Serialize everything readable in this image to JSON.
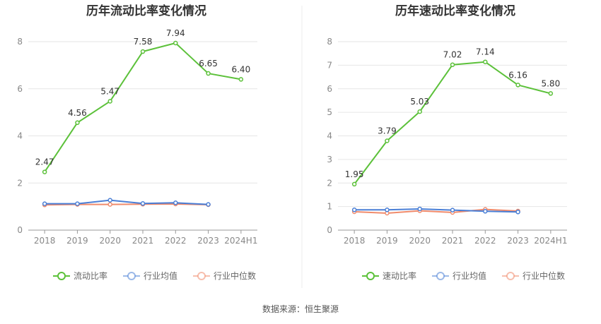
{
  "source": "数据来源：恒生聚源",
  "colors": {
    "primary": "#5cc13a",
    "avg": "#4a7fd6",
    "median": "#f08b6c",
    "grid": "#e6e6e6",
    "axis": "#999999"
  },
  "chart_data": [
    {
      "type": "line",
      "title": "历年流动比率变化情况",
      "categories": [
        "2018",
        "2019",
        "2020",
        "2021",
        "2022",
        "2023",
        "2024H1"
      ],
      "ylim": [
        0,
        8
      ],
      "yticks": [
        0,
        2,
        4,
        6,
        8
      ],
      "grid": true,
      "legend_position": "bottom",
      "series": [
        {
          "name": "流动比率",
          "values": [
            2.47,
            4.56,
            5.47,
            7.58,
            7.94,
            6.65,
            6.4
          ],
          "labels": [
            "2.47",
            "4.56",
            "5.47",
            "7.58",
            "7.94",
            "6.65",
            "6.40"
          ]
        },
        {
          "name": "行业均值",
          "values": [
            1.12,
            1.12,
            1.27,
            1.13,
            1.16,
            1.09,
            null
          ]
        },
        {
          "name": "行业中位数",
          "values": [
            1.07,
            1.09,
            1.09,
            1.1,
            1.11,
            1.08,
            null
          ]
        }
      ]
    },
    {
      "type": "line",
      "title": "历年速动比率变化情况",
      "categories": [
        "2018",
        "2019",
        "2020",
        "2021",
        "2022",
        "2023",
        "2024H1"
      ],
      "ylim": [
        0,
        8
      ],
      "yticks": [
        0,
        1,
        2,
        3,
        4,
        5,
        6,
        7,
        8
      ],
      "grid": true,
      "legend_position": "bottom",
      "series": [
        {
          "name": "速动比率",
          "values": [
            1.95,
            3.79,
            5.03,
            7.02,
            7.14,
            6.16,
            5.8
          ],
          "labels": [
            "1.95",
            "3.79",
            "5.03",
            "7.02",
            "7.14",
            "6.16",
            "5.80"
          ]
        },
        {
          "name": "行业均值",
          "values": [
            0.86,
            0.86,
            0.9,
            0.85,
            0.8,
            0.77,
            null
          ]
        },
        {
          "name": "行业中位数",
          "values": [
            0.78,
            0.72,
            0.82,
            0.75,
            0.88,
            0.81,
            null
          ]
        }
      ]
    }
  ]
}
